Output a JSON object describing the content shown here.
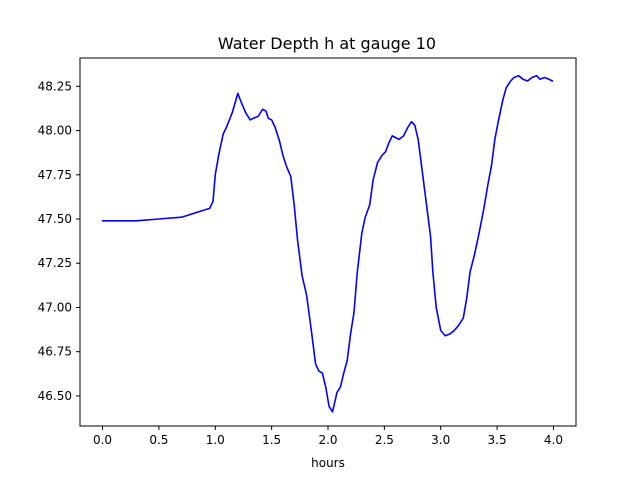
{
  "chart_data": {
    "type": "line",
    "title": "Water Depth h at gauge 10",
    "xlabel": "hours",
    "ylabel": "",
    "xlim": [
      -0.2,
      4.2
    ],
    "ylim": [
      46.33,
      48.41
    ],
    "x_ticks": [
      0.0,
      0.5,
      1.0,
      1.5,
      2.0,
      2.5,
      3.0,
      3.5,
      4.0
    ],
    "x_tick_labels": [
      "0.0",
      "0.5",
      "1.0",
      "1.5",
      "2.0",
      "2.5",
      "3.0",
      "3.5",
      "4.0"
    ],
    "y_ticks": [
      46.5,
      46.75,
      47.0,
      47.25,
      47.5,
      47.75,
      48.0,
      48.25
    ],
    "y_tick_labels": [
      "46.50",
      "46.75",
      "47.00",
      "47.25",
      "47.50",
      "47.75",
      "48.00",
      "48.25"
    ],
    "grid": false,
    "legend": "none",
    "series": [
      {
        "color": "#0000ff",
        "x": [
          0.0,
          0.3,
          0.5,
          0.7,
          0.75,
          0.85,
          0.95,
          0.98,
          1.0,
          1.03,
          1.07,
          1.1,
          1.15,
          1.2,
          1.23,
          1.27,
          1.31,
          1.34,
          1.38,
          1.42,
          1.45,
          1.47,
          1.5,
          1.53,
          1.57,
          1.6,
          1.63,
          1.67,
          1.7,
          1.73,
          1.77,
          1.81,
          1.85,
          1.89,
          1.92,
          1.95,
          1.98,
          2.01,
          2.04,
          2.08,
          2.11,
          2.14,
          2.17,
          2.2,
          2.23,
          2.26,
          2.3,
          2.33,
          2.37,
          2.4,
          2.44,
          2.48,
          2.51,
          2.54,
          2.57,
          2.6,
          2.63,
          2.67,
          2.71,
          2.74,
          2.77,
          2.8,
          2.84,
          2.88,
          2.91,
          2.93,
          2.96,
          3.0,
          3.04,
          3.08,
          3.12,
          3.16,
          3.2,
          3.23,
          3.26,
          3.3,
          3.34,
          3.38,
          3.42,
          3.45,
          3.48,
          3.51,
          3.55,
          3.58,
          3.62,
          3.65,
          3.69,
          3.73,
          3.77,
          3.81,
          3.85,
          3.88,
          3.92,
          3.96,
          3.99
        ],
        "y": [
          47.49,
          47.49,
          47.5,
          47.51,
          47.52,
          47.54,
          47.56,
          47.6,
          47.75,
          47.86,
          47.98,
          48.02,
          48.1,
          48.21,
          48.16,
          48.1,
          48.06,
          48.07,
          48.08,
          48.12,
          48.11,
          48.07,
          48.06,
          48.02,
          47.94,
          47.86,
          47.8,
          47.74,
          47.58,
          47.38,
          47.18,
          47.07,
          46.88,
          46.68,
          46.64,
          46.63,
          46.55,
          46.44,
          46.41,
          46.52,
          46.55,
          46.63,
          46.7,
          46.85,
          46.97,
          47.2,
          47.42,
          47.51,
          47.58,
          47.72,
          47.82,
          47.86,
          47.88,
          47.93,
          47.97,
          47.96,
          47.95,
          47.97,
          48.02,
          48.05,
          48.03,
          47.95,
          47.75,
          47.55,
          47.4,
          47.2,
          47.0,
          46.87,
          46.84,
          46.85,
          46.87,
          46.9,
          46.94,
          47.05,
          47.2,
          47.3,
          47.42,
          47.55,
          47.7,
          47.8,
          47.95,
          48.05,
          48.17,
          48.24,
          48.28,
          48.3,
          48.31,
          48.29,
          48.28,
          48.3,
          48.31,
          48.29,
          48.3,
          48.29,
          48.28
        ]
      }
    ]
  }
}
